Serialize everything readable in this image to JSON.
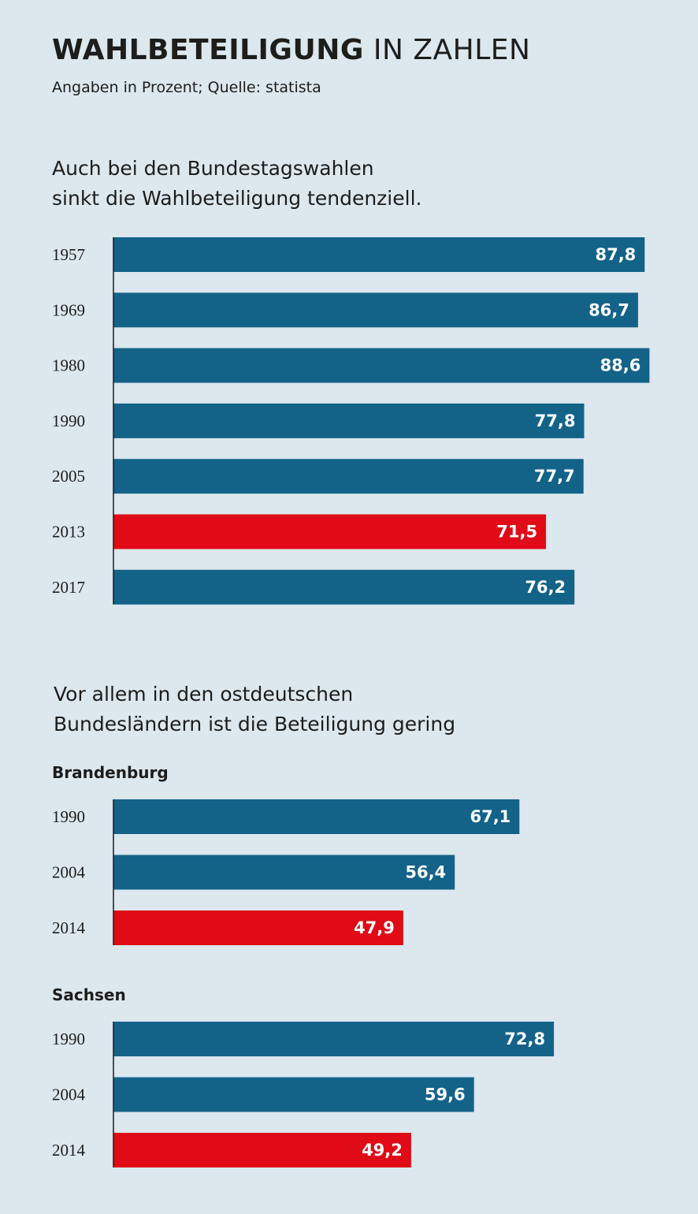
{
  "header": {
    "title_bold": "WAHLBETEILIGUNG",
    "title_light": "IN ZAHLEN",
    "subtitle": "Angaben in Prozent; Quelle: statista"
  },
  "section1": {
    "line1": "Auch bei den Bundestagswahlen",
    "line2": "sinkt die Wahlbeteiligung tendenziell."
  },
  "section2": {
    "line1": "Vor allem in den ostdeutschen",
    "line2": "Bundesländern ist die Beteiligung gering"
  },
  "colors": {
    "background": "#dce7ee",
    "bar": "#136389",
    "highlight": "#e00b17",
    "text": "#1d1d1b"
  },
  "chart_data": [
    {
      "type": "bar",
      "orientation": "horizontal",
      "title": "",
      "categories": [
        "1957",
        "1969",
        "1980",
        "1990",
        "2005",
        "2013",
        "2017"
      ],
      "values": [
        87.8,
        86.7,
        88.6,
        77.8,
        77.7,
        71.5,
        76.2
      ],
      "value_labels": [
        "87,8",
        "86,7",
        "88,6",
        "77,8",
        "77,7",
        "71,5",
        "76,2"
      ],
      "highlight": [
        false,
        false,
        false,
        false,
        false,
        true,
        false
      ],
      "xlim": [
        0,
        100
      ],
      "grid": false
    },
    {
      "type": "bar",
      "orientation": "horizontal",
      "title": "Brandenburg",
      "categories": [
        "1990",
        "2004",
        "2014"
      ],
      "values": [
        67.1,
        56.4,
        47.9
      ],
      "value_labels": [
        "67,1",
        "56,4",
        "47,9"
      ],
      "highlight": [
        false,
        false,
        true
      ],
      "xlim": [
        0,
        100
      ],
      "grid": false
    },
    {
      "type": "bar",
      "orientation": "horizontal",
      "title": "Sachsen",
      "categories": [
        "1990",
        "2004",
        "2014"
      ],
      "values": [
        72.8,
        59.6,
        49.2
      ],
      "value_labels": [
        "72,8",
        "59,6",
        "49,2"
      ],
      "highlight": [
        false,
        false,
        true
      ],
      "xlim": [
        0,
        100
      ],
      "grid": false
    }
  ]
}
